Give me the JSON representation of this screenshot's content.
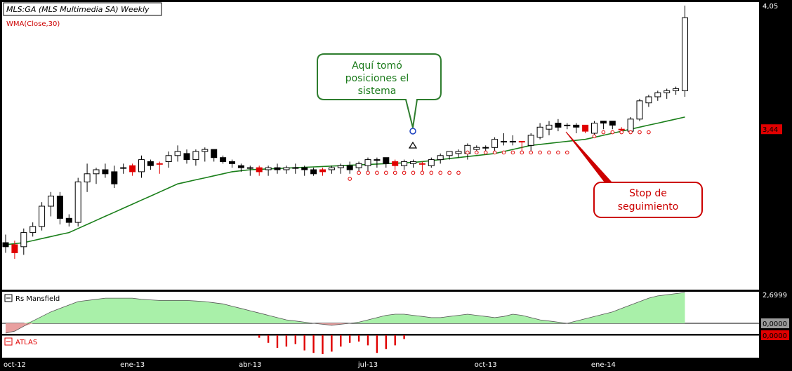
{
  "chart_data": {
    "type": "candlestick",
    "header": {
      "title": "MLS:GA (MLS Multimedia SA) Weekly",
      "indicator_label": "WMA(Close,30)"
    },
    "price_axis": {
      "min": 2.7,
      "max": 4.05,
      "labels": [
        {
          "value": 4.05,
          "text": "4,05",
          "kind": "plain"
        },
        {
          "value": 3.44,
          "text": "3,44",
          "kind": "highlight"
        },
        {
          "value": 2.6999,
          "text": "2,6999",
          "kind": "plain"
        }
      ]
    },
    "x_axis": {
      "labels": [
        {
          "index": 1,
          "text": "oct-12"
        },
        {
          "index": 14,
          "text": "ene-13"
        },
        {
          "index": 27,
          "text": "abr-13"
        },
        {
          "index": 40,
          "text": "jul-13"
        },
        {
          "index": 53,
          "text": "oct-13"
        },
        {
          "index": 66,
          "text": "ene-14"
        }
      ]
    },
    "candles": [
      {
        "o": 2.88,
        "h": 2.92,
        "l": 2.83,
        "c": 2.86,
        "color": "black"
      },
      {
        "o": 2.87,
        "h": 2.89,
        "l": 2.8,
        "c": 2.83,
        "color": "red"
      },
      {
        "o": 2.86,
        "h": 2.95,
        "l": 2.82,
        "c": 2.93,
        "color": "white"
      },
      {
        "o": 2.93,
        "h": 2.98,
        "l": 2.91,
        "c": 2.96,
        "color": "white"
      },
      {
        "o": 2.96,
        "h": 3.08,
        "l": 2.94,
        "c": 3.06,
        "color": "white"
      },
      {
        "o": 3.06,
        "h": 3.13,
        "l": 3.01,
        "c": 3.11,
        "color": "white"
      },
      {
        "o": 3.11,
        "h": 3.13,
        "l": 2.97,
        "c": 3.0,
        "color": "black"
      },
      {
        "o": 3.0,
        "h": 3.02,
        "l": 2.96,
        "c": 2.98,
        "color": "black"
      },
      {
        "o": 2.98,
        "h": 3.2,
        "l": 2.96,
        "c": 3.18,
        "color": "white"
      },
      {
        "o": 3.18,
        "h": 3.27,
        "l": 3.13,
        "c": 3.22,
        "color": "white"
      },
      {
        "o": 3.22,
        "h": 3.25,
        "l": 3.17,
        "c": 3.24,
        "color": "white"
      },
      {
        "o": 3.24,
        "h": 3.27,
        "l": 3.2,
        "c": 3.22,
        "color": "black"
      },
      {
        "o": 3.23,
        "h": 3.26,
        "l": 3.15,
        "c": 3.17,
        "color": "black"
      },
      {
        "o": 3.25,
        "h": 3.27,
        "l": 3.22,
        "c": 3.25,
        "color": "white"
      },
      {
        "o": 3.26,
        "h": 3.27,
        "l": 3.21,
        "c": 3.23,
        "color": "red"
      },
      {
        "o": 3.23,
        "h": 3.31,
        "l": 3.2,
        "c": 3.29,
        "color": "white"
      },
      {
        "o": 3.28,
        "h": 3.29,
        "l": 3.24,
        "c": 3.26,
        "color": "black"
      },
      {
        "o": 3.27,
        "h": 3.28,
        "l": 3.22,
        "c": 3.27,
        "color": "red"
      },
      {
        "o": 3.28,
        "h": 3.33,
        "l": 3.25,
        "c": 3.31,
        "color": "white"
      },
      {
        "o": 3.31,
        "h": 3.36,
        "l": 3.28,
        "c": 3.33,
        "color": "white"
      },
      {
        "o": 3.32,
        "h": 3.34,
        "l": 3.27,
        "c": 3.29,
        "color": "black"
      },
      {
        "o": 3.29,
        "h": 3.34,
        "l": 3.26,
        "c": 3.33,
        "color": "white"
      },
      {
        "o": 3.33,
        "h": 3.35,
        "l": 3.28,
        "c": 3.34,
        "color": "white"
      },
      {
        "o": 3.34,
        "h": 3.34,
        "l": 3.28,
        "c": 3.3,
        "color": "black"
      },
      {
        "o": 3.3,
        "h": 3.31,
        "l": 3.27,
        "c": 3.28,
        "color": "black"
      },
      {
        "o": 3.28,
        "h": 3.29,
        "l": 3.25,
        "c": 3.27,
        "color": "black"
      },
      {
        "o": 3.26,
        "h": 3.27,
        "l": 3.23,
        "c": 3.25,
        "color": "black"
      },
      {
        "o": 3.25,
        "h": 3.26,
        "l": 3.21,
        "c": 3.25,
        "color": "white"
      },
      {
        "o": 3.25,
        "h": 3.26,
        "l": 3.21,
        "c": 3.23,
        "color": "red"
      },
      {
        "o": 3.24,
        "h": 3.26,
        "l": 3.21,
        "c": 3.25,
        "color": "white"
      },
      {
        "o": 3.25,
        "h": 3.27,
        "l": 3.22,
        "c": 3.24,
        "color": "black"
      },
      {
        "o": 3.24,
        "h": 3.26,
        "l": 3.22,
        "c": 3.25,
        "color": "white"
      },
      {
        "o": 3.25,
        "h": 3.27,
        "l": 3.22,
        "c": 3.25,
        "color": "white"
      },
      {
        "o": 3.25,
        "h": 3.26,
        "l": 3.21,
        "c": 3.24,
        "color": "black"
      },
      {
        "o": 3.24,
        "h": 3.25,
        "l": 3.21,
        "c": 3.22,
        "color": "black"
      },
      {
        "o": 3.24,
        "h": 3.25,
        "l": 3.21,
        "c": 3.23,
        "color": "red"
      },
      {
        "o": 3.24,
        "h": 3.26,
        "l": 3.22,
        "c": 3.25,
        "color": "white"
      },
      {
        "o": 3.25,
        "h": 3.27,
        "l": 3.22,
        "c": 3.26,
        "color": "white"
      },
      {
        "o": 3.26,
        "h": 3.28,
        "l": 3.22,
        "c": 3.24,
        "color": "black"
      },
      {
        "o": 3.25,
        "h": 3.28,
        "l": 3.23,
        "c": 3.27,
        "color": "white"
      },
      {
        "o": 3.26,
        "h": 3.3,
        "l": 3.23,
        "c": 3.29,
        "color": "white"
      },
      {
        "o": 3.29,
        "h": 3.3,
        "l": 3.25,
        "c": 3.29,
        "color": "white"
      },
      {
        "o": 3.3,
        "h": 3.3,
        "l": 3.25,
        "c": 3.27,
        "color": "black"
      },
      {
        "o": 3.28,
        "h": 3.29,
        "l": 3.24,
        "c": 3.26,
        "color": "red"
      },
      {
        "o": 3.26,
        "h": 3.29,
        "l": 3.24,
        "c": 3.28,
        "color": "white"
      },
      {
        "o": 3.27,
        "h": 3.29,
        "l": 3.25,
        "c": 3.28,
        "color": "white"
      },
      {
        "o": 3.27,
        "h": 3.28,
        "l": 3.23,
        "c": 3.27,
        "color": "red"
      },
      {
        "o": 3.26,
        "h": 3.3,
        "l": 3.25,
        "c": 3.29,
        "color": "white"
      },
      {
        "o": 3.29,
        "h": 3.32,
        "l": 3.27,
        "c": 3.31,
        "color": "white"
      },
      {
        "o": 3.31,
        "h": 3.33,
        "l": 3.29,
        "c": 3.33,
        "color": "white"
      },
      {
        "o": 3.32,
        "h": 3.34,
        "l": 3.3,
        "c": 3.33,
        "color": "white"
      },
      {
        "o": 3.32,
        "h": 3.37,
        "l": 3.29,
        "c": 3.36,
        "color": "white"
      },
      {
        "o": 3.35,
        "h": 3.36,
        "l": 3.32,
        "c": 3.34,
        "color": "white"
      },
      {
        "o": 3.35,
        "h": 3.36,
        "l": 3.32,
        "c": 3.35,
        "color": "white"
      },
      {
        "o": 3.35,
        "h": 3.4,
        "l": 3.33,
        "c": 3.39,
        "color": "white"
      },
      {
        "o": 3.38,
        "h": 3.42,
        "l": 3.36,
        "c": 3.38,
        "color": "white"
      },
      {
        "o": 3.38,
        "h": 3.41,
        "l": 3.36,
        "c": 3.38,
        "color": "black"
      },
      {
        "o": 3.38,
        "h": 3.38,
        "l": 3.33,
        "c": 3.38,
        "color": "red"
      },
      {
        "o": 3.36,
        "h": 3.42,
        "l": 3.33,
        "c": 3.41,
        "color": "white"
      },
      {
        "o": 3.4,
        "h": 3.47,
        "l": 3.39,
        "c": 3.45,
        "color": "white"
      },
      {
        "o": 3.44,
        "h": 3.48,
        "l": 3.41,
        "c": 3.46,
        "color": "white"
      },
      {
        "o": 3.47,
        "h": 3.49,
        "l": 3.43,
        "c": 3.45,
        "color": "black"
      },
      {
        "o": 3.46,
        "h": 3.47,
        "l": 3.44,
        "c": 3.46,
        "color": "white"
      },
      {
        "o": 3.46,
        "h": 3.47,
        "l": 3.42,
        "c": 3.45,
        "color": "black"
      },
      {
        "o": 3.46,
        "h": 3.46,
        "l": 3.42,
        "c": 3.43,
        "color": "red"
      },
      {
        "o": 3.42,
        "h": 3.48,
        "l": 3.4,
        "c": 3.47,
        "color": "white"
      },
      {
        "o": 3.47,
        "h": 3.48,
        "l": 3.44,
        "c": 3.48,
        "color": "black"
      },
      {
        "o": 3.48,
        "h": 3.48,
        "l": 3.44,
        "c": 3.46,
        "color": "black"
      },
      {
        "o": 3.44,
        "h": 3.45,
        "l": 3.43,
        "c": 3.44,
        "color": "red"
      },
      {
        "o": 3.43,
        "h": 3.5,
        "l": 3.42,
        "c": 3.49,
        "color": "white"
      },
      {
        "o": 3.49,
        "h": 3.59,
        "l": 3.48,
        "c": 3.58,
        "color": "white"
      },
      {
        "o": 3.57,
        "h": 3.61,
        "l": 3.55,
        "c": 3.6,
        "color": "white"
      },
      {
        "o": 3.6,
        "h": 3.63,
        "l": 3.58,
        "c": 3.62,
        "color": "white"
      },
      {
        "o": 3.62,
        "h": 3.64,
        "l": 3.59,
        "c": 3.63,
        "color": "white"
      },
      {
        "o": 3.63,
        "h": 3.65,
        "l": 3.61,
        "c": 3.64,
        "color": "white"
      },
      {
        "o": 3.63,
        "h": 4.05,
        "l": 3.6,
        "c": 3.99,
        "color": "white"
      }
    ],
    "wma": [
      2.87,
      2.875,
      2.88,
      2.89,
      2.9,
      2.91,
      2.92,
      2.93,
      2.95,
      2.97,
      2.99,
      3.01,
      3.03,
      3.05,
      3.07,
      3.09,
      3.11,
      3.13,
      3.15,
      3.17,
      3.18,
      3.19,
      3.2,
      3.21,
      3.22,
      3.23,
      3.235,
      3.24,
      3.242,
      3.244,
      3.246,
      3.248,
      3.25,
      3.252,
      3.254,
      3.256,
      3.258,
      3.26,
      3.262,
      3.264,
      3.266,
      3.268,
      3.27,
      3.272,
      3.274,
      3.276,
      3.28,
      3.285,
      3.29,
      3.295,
      3.3,
      3.305,
      3.31,
      3.315,
      3.32,
      3.33,
      3.34,
      3.35,
      3.36,
      3.365,
      3.37,
      3.375,
      3.38,
      3.385,
      3.39,
      3.4,
      3.41,
      3.42,
      3.43,
      3.44,
      3.45,
      3.46,
      3.47,
      3.48,
      3.49,
      3.5
    ],
    "stop_dots": [
      {
        "i": 38,
        "v": 3.195
      },
      {
        "i": 39,
        "v": 3.225
      },
      {
        "i": 40,
        "v": 3.225
      },
      {
        "i": 41,
        "v": 3.225
      },
      {
        "i": 42,
        "v": 3.225
      },
      {
        "i": 43,
        "v": 3.225
      },
      {
        "i": 44,
        "v": 3.225
      },
      {
        "i": 45,
        "v": 3.225
      },
      {
        "i": 46,
        "v": 3.225
      },
      {
        "i": 47,
        "v": 3.225
      },
      {
        "i": 48,
        "v": 3.225
      },
      {
        "i": 49,
        "v": 3.225
      },
      {
        "i": 50,
        "v": 3.225
      },
      {
        "i": 51,
        "v": 3.325
      },
      {
        "i": 52,
        "v": 3.325
      },
      {
        "i": 53,
        "v": 3.325
      },
      {
        "i": 54,
        "v": 3.325
      },
      {
        "i": 55,
        "v": 3.325
      },
      {
        "i": 56,
        "v": 3.325
      },
      {
        "i": 57,
        "v": 3.325
      },
      {
        "i": 58,
        "v": 3.325
      },
      {
        "i": 59,
        "v": 3.325
      },
      {
        "i": 60,
        "v": 3.325
      },
      {
        "i": 61,
        "v": 3.325
      },
      {
        "i": 62,
        "v": 3.325
      },
      {
        "i": 65,
        "v": 3.405
      },
      {
        "i": 66,
        "v": 3.425
      },
      {
        "i": 67,
        "v": 3.425
      },
      {
        "i": 68,
        "v": 3.425
      },
      {
        "i": 69,
        "v": 3.425
      },
      {
        "i": 70,
        "v": 3.425
      },
      {
        "i": 71,
        "v": 3.425
      }
    ],
    "rs_mansfield": {
      "label": "Rs Mansfield",
      "min": -1.0,
      "max": 2.6999,
      "axis_labels": [
        {
          "value": 0.0,
          "text": "0,0000"
        }
      ],
      "values": [
        -1.0,
        -0.8,
        -0.3,
        0.2,
        0.6,
        1.0,
        1.3,
        1.6,
        1.9,
        2.0,
        2.1,
        2.2,
        2.2,
        2.2,
        2.2,
        2.1,
        2.05,
        2.0,
        2.0,
        2.0,
        2.0,
        1.95,
        1.9,
        1.8,
        1.7,
        1.5,
        1.3,
        1.1,
        0.9,
        0.7,
        0.5,
        0.3,
        0.2,
        0.1,
        0.0,
        -0.1,
        -0.2,
        -0.1,
        0.0,
        0.1,
        0.3,
        0.5,
        0.7,
        0.8,
        0.8,
        0.7,
        0.6,
        0.5,
        0.5,
        0.6,
        0.7,
        0.8,
        0.7,
        0.6,
        0.5,
        0.6,
        0.8,
        0.7,
        0.5,
        0.3,
        0.2,
        0.1,
        0.0,
        0.2,
        0.4,
        0.6,
        0.8,
        1.0,
        1.3,
        1.6,
        1.9,
        2.2,
        2.4,
        2.5,
        2.6,
        2.6999
      ]
    },
    "atlas": {
      "label": "ATLAS",
      "axis_labels": [
        {
          "value": 0,
          "text": "0,0000"
        }
      ],
      "values": [
        0,
        0,
        0,
        0,
        0,
        0,
        0,
        0,
        0,
        0,
        0,
        0,
        0,
        0,
        0,
        0,
        0,
        0,
        0,
        0,
        0,
        0,
        0,
        0,
        0,
        0,
        0,
        0,
        -0.2,
        -0.6,
        -1.0,
        -0.9,
        -0.7,
        -1.2,
        -1.4,
        -1.5,
        -1.3,
        -0.9,
        -0.6,
        -0.5,
        -0.8,
        -1.4,
        -1.1,
        -0.8,
        -0.3,
        0,
        0,
        0,
        0,
        0,
        0,
        0,
        0,
        0,
        0,
        0,
        0,
        0,
        0,
        0,
        0,
        0,
        0,
        0,
        0,
        0,
        0,
        0,
        0,
        0,
        0,
        0,
        0,
        0,
        0,
        0
      ]
    },
    "annotations": [
      {
        "id": "entry",
        "lines": [
          "Aquí tomó",
          "posiciones el",
          "sistema"
        ],
        "color": "#1a7a1a"
      },
      {
        "id": "stop",
        "lines": [
          "Stop de",
          "seguimiento"
        ],
        "color": "#cc0000"
      }
    ],
    "colors": {
      "up": "#ffffff",
      "down": "#000000",
      "red": "#e00000",
      "wma": "#1a7f1a",
      "rs_pos": "#a9f0a9",
      "rs_neg": "#e9a0a0",
      "stop": "#e00000"
    }
  }
}
